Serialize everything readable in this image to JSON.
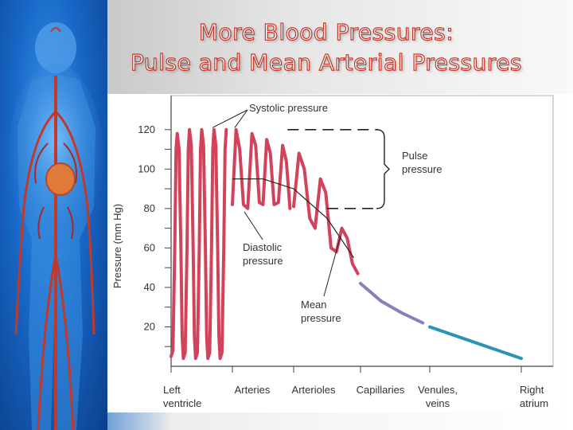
{
  "slide": {
    "title_line1": "More Blood Pressures:",
    "title_line2": "Pulse and Mean Arterial Pressures"
  },
  "colors": {
    "pressure_curve": "#d1435b",
    "capillary_curve": "#8b7fb8",
    "venous_curve": "#2a93b8",
    "background_blue": "#1767c6",
    "title_outline": "#c0392b"
  },
  "chart_data": {
    "type": "line",
    "ylabel": "Pressure (mm Hg)",
    "xlabel": "",
    "yticks": [
      20,
      40,
      60,
      80,
      100,
      120
    ],
    "ylim": [
      0,
      130
    ],
    "x_categories": [
      "Left ventricle",
      "Arteries",
      "Arterioles",
      "Capillaries",
      "Venules, veins",
      "Right atrium"
    ],
    "annotations": {
      "systolic": "Systolic pressure",
      "pulse": "Pulse pressure",
      "diastolic": "Diastolic pressure",
      "mean": "Mean pressure"
    },
    "systolic_level": 120,
    "diastolic_level": 80,
    "series": [
      {
        "segment": "left-ventricle",
        "x": [
          0.0,
          0.03,
          0.06,
          0.08,
          0.1,
          0.13,
          0.16,
          0.18,
          0.2,
          0.23,
          0.26,
          0.28,
          0.3,
          0.33,
          0.36,
          0.38,
          0.4,
          0.43,
          0.46,
          0.48,
          0.5,
          0.53,
          0.56,
          0.58,
          0.6,
          0.63,
          0.66,
          0.68,
          0.7,
          0.73,
          0.76,
          0.78,
          0.8,
          0.83,
          0.86,
          0.88,
          0.9
        ],
        "y": [
          5,
          8,
          60,
          110,
          118,
          110,
          60,
          15,
          4,
          7,
          60,
          110,
          120,
          112,
          60,
          15,
          4,
          7,
          60,
          110,
          120,
          112,
          60,
          15,
          4,
          7,
          60,
          110,
          120,
          112,
          60,
          15,
          4,
          7,
          60,
          110,
          120
        ]
      },
      {
        "segment": "arteries",
        "x": [
          1.0,
          1.06,
          1.12,
          1.18,
          1.25,
          1.32,
          1.38,
          1.44,
          1.5,
          1.56,
          1.62,
          1.68,
          1.75,
          1.82,
          1.88,
          1.94
        ],
        "y": [
          82,
          120,
          110,
          82,
          80,
          118,
          112,
          83,
          82,
          115,
          108,
          82,
          83,
          112,
          104,
          80
        ]
      },
      {
        "segment": "arterioles",
        "x": [
          2.0,
          2.08,
          2.16,
          2.24,
          2.32,
          2.4,
          2.48,
          2.56,
          2.64,
          2.72,
          2.8,
          2.88,
          2.96
        ],
        "y": [
          81,
          108,
          100,
          75,
          70,
          95,
          88,
          60,
          58,
          70,
          65,
          52,
          47
        ]
      },
      {
        "segment": "capillaries",
        "x": [
          3.0,
          3.3,
          3.6,
          3.9
        ],
        "y": [
          42,
          33,
          27,
          22
        ]
      },
      {
        "segment": "venules-veins",
        "x": [
          4.0,
          4.5,
          5.0
        ],
        "y": [
          20,
          12,
          4
        ]
      }
    ],
    "mean_pressure": {
      "x": [
        1.0,
        1.5,
        2.0,
        2.5,
        2.9
      ],
      "y": [
        95,
        95,
        90,
        75,
        55
      ]
    }
  }
}
